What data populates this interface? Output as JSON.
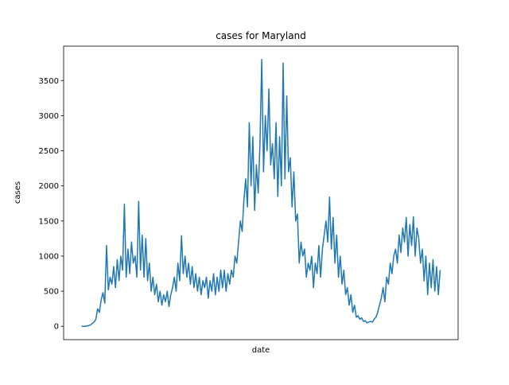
{
  "chart_data": {
    "type": "line",
    "title": "cases for Maryland",
    "x_label": "date",
    "y_label": "cases",
    "color": "#1f77b4",
    "ylim": [
      -190,
      3990
    ],
    "yticks": [
      0,
      500,
      1000,
      1500,
      2000,
      2500,
      3000,
      3500
    ],
    "values": [
      0,
      0,
      0,
      5,
      10,
      20,
      40,
      60,
      100,
      250,
      200,
      380,
      480,
      330,
      1150,
      520,
      700,
      600,
      850,
      550,
      950,
      650,
      1000,
      800,
      1740,
      700,
      1100,
      750,
      1200,
      900,
      1000,
      700,
      1780,
      800,
      1300,
      700,
      1250,
      650,
      900,
      500,
      700,
      450,
      600,
      350,
      500,
      300,
      450,
      350,
      500,
      280,
      450,
      550,
      700,
      500,
      900,
      650,
      1290,
      750,
      1000,
      700,
      900,
      600,
      850,
      550,
      750,
      500,
      700,
      450,
      650,
      550,
      700,
      400,
      650,
      500,
      750,
      450,
      700,
      500,
      800,
      550,
      800,
      500,
      750,
      600,
      800,
      700,
      1000,
      900,
      1200,
      1500,
      1350,
      1800,
      2100,
      1700,
      2900,
      2000,
      2700,
      1650,
      2300,
      1900,
      2600,
      3800,
      2200,
      3000,
      2500,
      3380,
      2300,
      2600,
      2100,
      2900,
      1850,
      2700,
      2000,
      3750,
      2100,
      3280,
      2200,
      2400,
      1700,
      2200,
      1500,
      1600,
      900,
      1200,
      1000,
      1100,
      700,
      900,
      800,
      1000,
      550,
      900,
      750,
      1150,
      700,
      1100,
      1300,
      1500,
      1200,
      1840,
      1100,
      1550,
      900,
      1300,
      700,
      1000,
      600,
      800,
      450,
      550,
      300,
      450,
      200,
      300,
      130,
      150,
      100,
      120,
      70,
      80,
      50,
      60,
      70,
      60,
      100,
      130,
      200,
      300,
      400,
      550,
      350,
      700,
      600,
      900,
      750,
      1000,
      1100,
      900,
      1300,
      1050,
      1400,
      1200,
      1550,
      1000,
      1450,
      1150,
      1560,
      1000,
      1400,
      1250,
      900,
      1100,
      650,
      1000,
      450,
      900,
      550,
      950,
      500,
      850,
      450,
      800
    ]
  }
}
